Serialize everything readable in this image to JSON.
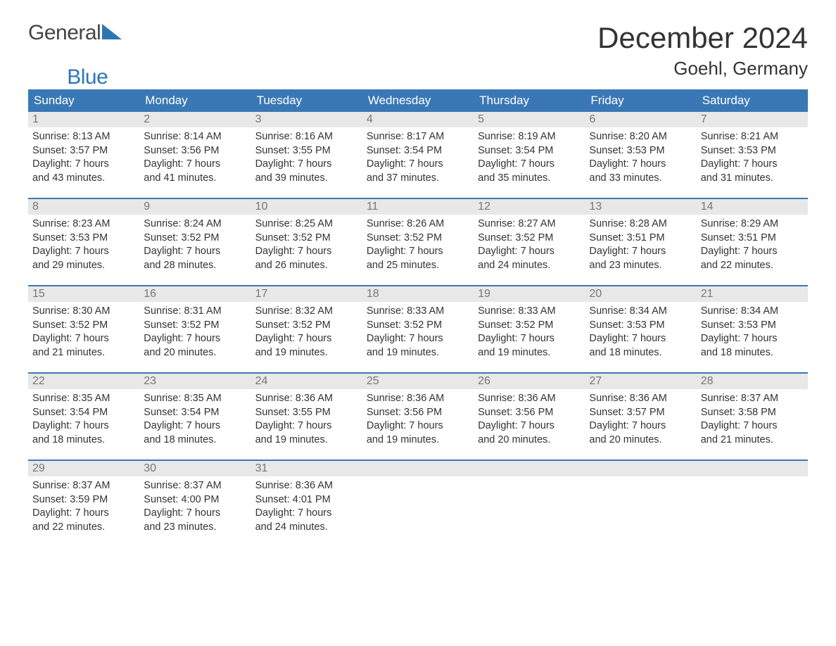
{
  "brand": {
    "part1": "General",
    "part2": "Blue"
  },
  "title": "December 2024",
  "location": "Goehl, Germany",
  "colors": {
    "header_bg": "#3a78b5",
    "header_text": "#ffffff",
    "daynum_bg": "#e8e8e8",
    "daynum_text": "#777777",
    "body_text": "#333333",
    "rule": "#3a78b5",
    "brand_blue": "#2e75b6"
  },
  "weekdays": [
    "Sunday",
    "Monday",
    "Tuesday",
    "Wednesday",
    "Thursday",
    "Friday",
    "Saturday"
  ],
  "weeks": [
    [
      {
        "n": "1",
        "sunrise": "Sunrise: 8:13 AM",
        "sunset": "Sunset: 3:57 PM",
        "d1": "Daylight: 7 hours",
        "d2": "and 43 minutes."
      },
      {
        "n": "2",
        "sunrise": "Sunrise: 8:14 AM",
        "sunset": "Sunset: 3:56 PM",
        "d1": "Daylight: 7 hours",
        "d2": "and 41 minutes."
      },
      {
        "n": "3",
        "sunrise": "Sunrise: 8:16 AM",
        "sunset": "Sunset: 3:55 PM",
        "d1": "Daylight: 7 hours",
        "d2": "and 39 minutes."
      },
      {
        "n": "4",
        "sunrise": "Sunrise: 8:17 AM",
        "sunset": "Sunset: 3:54 PM",
        "d1": "Daylight: 7 hours",
        "d2": "and 37 minutes."
      },
      {
        "n": "5",
        "sunrise": "Sunrise: 8:19 AM",
        "sunset": "Sunset: 3:54 PM",
        "d1": "Daylight: 7 hours",
        "d2": "and 35 minutes."
      },
      {
        "n": "6",
        "sunrise": "Sunrise: 8:20 AM",
        "sunset": "Sunset: 3:53 PM",
        "d1": "Daylight: 7 hours",
        "d2": "and 33 minutes."
      },
      {
        "n": "7",
        "sunrise": "Sunrise: 8:21 AM",
        "sunset": "Sunset: 3:53 PM",
        "d1": "Daylight: 7 hours",
        "d2": "and 31 minutes."
      }
    ],
    [
      {
        "n": "8",
        "sunrise": "Sunrise: 8:23 AM",
        "sunset": "Sunset: 3:53 PM",
        "d1": "Daylight: 7 hours",
        "d2": "and 29 minutes."
      },
      {
        "n": "9",
        "sunrise": "Sunrise: 8:24 AM",
        "sunset": "Sunset: 3:52 PM",
        "d1": "Daylight: 7 hours",
        "d2": "and 28 minutes."
      },
      {
        "n": "10",
        "sunrise": "Sunrise: 8:25 AM",
        "sunset": "Sunset: 3:52 PM",
        "d1": "Daylight: 7 hours",
        "d2": "and 26 minutes."
      },
      {
        "n": "11",
        "sunrise": "Sunrise: 8:26 AM",
        "sunset": "Sunset: 3:52 PM",
        "d1": "Daylight: 7 hours",
        "d2": "and 25 minutes."
      },
      {
        "n": "12",
        "sunrise": "Sunrise: 8:27 AM",
        "sunset": "Sunset: 3:52 PM",
        "d1": "Daylight: 7 hours",
        "d2": "and 24 minutes."
      },
      {
        "n": "13",
        "sunrise": "Sunrise: 8:28 AM",
        "sunset": "Sunset: 3:51 PM",
        "d1": "Daylight: 7 hours",
        "d2": "and 23 minutes."
      },
      {
        "n": "14",
        "sunrise": "Sunrise: 8:29 AM",
        "sunset": "Sunset: 3:51 PM",
        "d1": "Daylight: 7 hours",
        "d2": "and 22 minutes."
      }
    ],
    [
      {
        "n": "15",
        "sunrise": "Sunrise: 8:30 AM",
        "sunset": "Sunset: 3:52 PM",
        "d1": "Daylight: 7 hours",
        "d2": "and 21 minutes."
      },
      {
        "n": "16",
        "sunrise": "Sunrise: 8:31 AM",
        "sunset": "Sunset: 3:52 PM",
        "d1": "Daylight: 7 hours",
        "d2": "and 20 minutes."
      },
      {
        "n": "17",
        "sunrise": "Sunrise: 8:32 AM",
        "sunset": "Sunset: 3:52 PM",
        "d1": "Daylight: 7 hours",
        "d2": "and 19 minutes."
      },
      {
        "n": "18",
        "sunrise": "Sunrise: 8:33 AM",
        "sunset": "Sunset: 3:52 PM",
        "d1": "Daylight: 7 hours",
        "d2": "and 19 minutes."
      },
      {
        "n": "19",
        "sunrise": "Sunrise: 8:33 AM",
        "sunset": "Sunset: 3:52 PM",
        "d1": "Daylight: 7 hours",
        "d2": "and 19 minutes."
      },
      {
        "n": "20",
        "sunrise": "Sunrise: 8:34 AM",
        "sunset": "Sunset: 3:53 PM",
        "d1": "Daylight: 7 hours",
        "d2": "and 18 minutes."
      },
      {
        "n": "21",
        "sunrise": "Sunrise: 8:34 AM",
        "sunset": "Sunset: 3:53 PM",
        "d1": "Daylight: 7 hours",
        "d2": "and 18 minutes."
      }
    ],
    [
      {
        "n": "22",
        "sunrise": "Sunrise: 8:35 AM",
        "sunset": "Sunset: 3:54 PM",
        "d1": "Daylight: 7 hours",
        "d2": "and 18 minutes."
      },
      {
        "n": "23",
        "sunrise": "Sunrise: 8:35 AM",
        "sunset": "Sunset: 3:54 PM",
        "d1": "Daylight: 7 hours",
        "d2": "and 18 minutes."
      },
      {
        "n": "24",
        "sunrise": "Sunrise: 8:36 AM",
        "sunset": "Sunset: 3:55 PM",
        "d1": "Daylight: 7 hours",
        "d2": "and 19 minutes."
      },
      {
        "n": "25",
        "sunrise": "Sunrise: 8:36 AM",
        "sunset": "Sunset: 3:56 PM",
        "d1": "Daylight: 7 hours",
        "d2": "and 19 minutes."
      },
      {
        "n": "26",
        "sunrise": "Sunrise: 8:36 AM",
        "sunset": "Sunset: 3:56 PM",
        "d1": "Daylight: 7 hours",
        "d2": "and 20 minutes."
      },
      {
        "n": "27",
        "sunrise": "Sunrise: 8:36 AM",
        "sunset": "Sunset: 3:57 PM",
        "d1": "Daylight: 7 hours",
        "d2": "and 20 minutes."
      },
      {
        "n": "28",
        "sunrise": "Sunrise: 8:37 AM",
        "sunset": "Sunset: 3:58 PM",
        "d1": "Daylight: 7 hours",
        "d2": "and 21 minutes."
      }
    ],
    [
      {
        "n": "29",
        "sunrise": "Sunrise: 8:37 AM",
        "sunset": "Sunset: 3:59 PM",
        "d1": "Daylight: 7 hours",
        "d2": "and 22 minutes."
      },
      {
        "n": "30",
        "sunrise": "Sunrise: 8:37 AM",
        "sunset": "Sunset: 4:00 PM",
        "d1": "Daylight: 7 hours",
        "d2": "and 23 minutes."
      },
      {
        "n": "31",
        "sunrise": "Sunrise: 8:36 AM",
        "sunset": "Sunset: 4:01 PM",
        "d1": "Daylight: 7 hours",
        "d2": "and 24 minutes."
      },
      {
        "n": "",
        "sunrise": "",
        "sunset": "",
        "d1": "",
        "d2": ""
      },
      {
        "n": "",
        "sunrise": "",
        "sunset": "",
        "d1": "",
        "d2": ""
      },
      {
        "n": "",
        "sunrise": "",
        "sunset": "",
        "d1": "",
        "d2": ""
      },
      {
        "n": "",
        "sunrise": "",
        "sunset": "",
        "d1": "",
        "d2": ""
      }
    ]
  ]
}
